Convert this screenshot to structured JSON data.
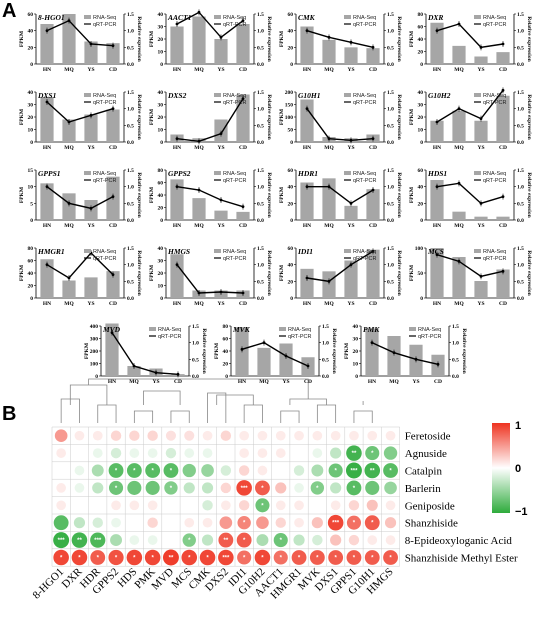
{
  "panel_labels": [
    "A",
    "B"
  ],
  "chart_data": [
    {
      "type": "bar+line",
      "panel": "A",
      "categories": [
        "HN",
        "MQ",
        "YS",
        "CD"
      ],
      "ylabel_left": "FPKM",
      "ylabel_right": "Relative expression",
      "legend": {
        "bar": "RNA-Seq",
        "line": "qRT-PCR"
      },
      "genes": [
        {
          "name": "8-HGO1",
          "fpkm": [
            48,
            60,
            27,
            25
          ],
          "yticks": [
            0,
            20,
            40,
            60
          ],
          "rel": [
            1.0,
            1.3,
            0.6,
            0.55
          ],
          "rticks": [
            0.0,
            0.5,
            1.0,
            1.5
          ]
        },
        {
          "name": "AACT1",
          "fpkm": [
            30,
            38,
            20,
            32
          ],
          "yticks": [
            0,
            10,
            20,
            30,
            40
          ],
          "rel": [
            1.2,
            1.55,
            0.8,
            1.3
          ],
          "rticks": [
            0.0,
            0.5,
            1.0,
            1.5
          ]
        },
        {
          "name": "CMK",
          "fpkm": [
            45,
            29,
            20,
            19
          ],
          "yticks": [
            0,
            20,
            40,
            60
          ],
          "rel": [
            1.0,
            0.8,
            0.65,
            0.5
          ],
          "rticks": [
            0.0,
            0.5,
            1.0,
            1.5
          ]
        },
        {
          "name": "DXR",
          "fpkm": [
            66,
            29,
            12,
            19
          ],
          "yticks": [
            0,
            20,
            40,
            60,
            80
          ],
          "rel": [
            1.0,
            1.2,
            0.5,
            0.6
          ],
          "rticks": [
            0.0,
            0.5,
            1.0,
            1.5
          ]
        },
        {
          "name": "DXS1",
          "fpkm": [
            36,
            18,
            22,
            26
          ],
          "yticks": [
            0,
            10,
            20,
            30,
            40
          ],
          "rel": [
            1.2,
            0.6,
            0.8,
            1.0
          ],
          "rticks": [
            0.0,
            0.5,
            1.0,
            1.5
          ]
        },
        {
          "name": "DXS2",
          "fpkm": [
            6,
            3,
            18,
            38
          ],
          "yticks": [
            0,
            10,
            20,
            30,
            40
          ],
          "rel": [
            0.1,
            0.02,
            0.25,
            1.3
          ],
          "rticks": [
            0.0,
            0.5,
            1.0,
            1.5
          ]
        },
        {
          "name": "G10H1",
          "fpkm": [
            170,
            20,
            15,
            30
          ],
          "yticks": [
            0,
            50,
            100,
            150,
            200
          ],
          "rel": [
            1.0,
            0.1,
            0.05,
            0.1
          ],
          "rticks": [
            0.0,
            0.5,
            1.0,
            1.5
          ]
        },
        {
          "name": "G10H2",
          "fpkm": [
            17,
            25,
            17,
            37
          ],
          "yticks": [
            0,
            10,
            20,
            30,
            40
          ],
          "rel": [
            0.6,
            1.0,
            0.7,
            1.55
          ],
          "rticks": [
            0.0,
            0.5,
            1.0,
            1.5
          ]
        },
        {
          "name": "GPPS1",
          "fpkm": [
            11,
            8,
            6,
            13
          ],
          "yticks": [
            0,
            5,
            10,
            15
          ],
          "rel": [
            1.0,
            0.5,
            0.35,
            0.7
          ],
          "rticks": [
            0.0,
            0.5,
            1.0,
            1.5
          ]
        },
        {
          "name": "GPPS2",
          "fpkm": [
            65,
            35,
            15,
            13
          ],
          "yticks": [
            0,
            20,
            40,
            60,
            80
          ],
          "rel": [
            1.0,
            0.9,
            0.6,
            0.4
          ],
          "rticks": [
            0.0,
            0.5,
            1.0,
            1.5
          ]
        },
        {
          "name": "HDR1",
          "fpkm": [
            45,
            50,
            17,
            37
          ],
          "yticks": [
            0,
            20,
            40,
            60
          ],
          "rel": [
            1.0,
            1.0,
            0.5,
            0.9
          ],
          "rticks": [
            0.0,
            0.5,
            1.0,
            1.5
          ]
        },
        {
          "name": "HDS1",
          "fpkm": [
            48,
            10,
            4,
            4
          ],
          "yticks": [
            0,
            20,
            40,
            60
          ],
          "rel": [
            1.0,
            1.1,
            0.5,
            0.7
          ],
          "rticks": [
            0.0,
            0.5,
            1.0,
            1.5
          ]
        },
        {
          "name": "HMGR1",
          "fpkm": [
            62,
            28,
            33,
            43
          ],
          "yticks": [
            0,
            20,
            40,
            60,
            80
          ],
          "rel": [
            1.0,
            0.6,
            1.35,
            0.7
          ],
          "rticks": [
            0.0,
            0.5,
            1.0,
            1.5
          ]
        },
        {
          "name": "HMGS",
          "fpkm": [
            35,
            6,
            6,
            6
          ],
          "yticks": [
            0,
            10,
            20,
            30,
            40
          ],
          "rel": [
            1.0,
            0.15,
            0.18,
            0.15
          ],
          "rticks": [
            0.0,
            0.5,
            1.0,
            1.5
          ]
        },
        {
          "name": "IDI1",
          "fpkm": [
            35,
            32,
            45,
            58
          ],
          "yticks": [
            0,
            20,
            40,
            60
          ],
          "rel": [
            0.6,
            0.5,
            1.0,
            1.4
          ],
          "rticks": [
            0.0,
            0.5,
            1.0,
            1.5
          ]
        },
        {
          "name": "MCS",
          "fpkm": [
            100,
            82,
            34,
            57
          ],
          "yticks": [
            0,
            50,
            100
          ],
          "rel": [
            1.3,
            1.1,
            0.65,
            0.8
          ],
          "rticks": [
            0.0,
            0.5,
            1.0,
            1.5
          ]
        },
        {
          "name": "MVD",
          "fpkm": [
            420,
            80,
            60,
            15
          ],
          "yticks": [
            0,
            100,
            200,
            300,
            400
          ],
          "rel": [
            1.3,
            0.3,
            0.1,
            0.05
          ],
          "rticks": [
            0.0,
            0.5,
            1.0,
            1.5
          ]
        },
        {
          "name": "MVK",
          "fpkm": [
            78,
            45,
            52,
            30
          ],
          "yticks": [
            0,
            20,
            40,
            60,
            80
          ],
          "rel": [
            0.8,
            1.0,
            0.6,
            0.3
          ],
          "rticks": [
            0.0,
            0.5,
            1.0,
            1.5
          ]
        },
        {
          "name": "PMK",
          "fpkm": [
            38,
            32,
            25,
            17
          ],
          "yticks": [
            0,
            10,
            20,
            30,
            40
          ],
          "rel": [
            1.0,
            0.7,
            0.5,
            0.35
          ],
          "rticks": [
            0.0,
            0.5,
            1.0,
            1.5
          ]
        }
      ]
    },
    {
      "type": "heatmap",
      "panel": "B",
      "columns": [
        "8-HGO1",
        "DXR",
        "HDR",
        "GPPS2",
        "HDS",
        "PMK",
        "MVD",
        "MCS",
        "CMK",
        "DXS2",
        "IDI1",
        "G10H2",
        "AACT1",
        "HMGR1",
        "MVK",
        "DXS1",
        "GPPS1",
        "G10H1",
        "HMGS"
      ],
      "rows": [
        "Feretoside",
        "Agnuside",
        "Catalpin",
        "Barlerin",
        "Geniposide",
        "Shanzhiside",
        "8-Epideoxyloganic Acid",
        "Shanzhiside Methyl Ester"
      ],
      "colorbar": {
        "max": "1",
        "mid": "0",
        "min": "−1",
        "colors": [
          "#2eab3c",
          "#ffffff",
          "#ee3320"
        ]
      },
      "values": [
        [
          0.5,
          0.1,
          0.1,
          0.2,
          0.2,
          0.2,
          0.15,
          0.15,
          0.1,
          0.2,
          0.1,
          0.1,
          0.1,
          0.1,
          0.1,
          0.1,
          0.1,
          0.1,
          0.1
        ],
        [
          0.1,
          0.0,
          -0.1,
          -0.2,
          -0.1,
          -0.1,
          -0.2,
          -0.1,
          -0.1,
          0.0,
          0.1,
          0.1,
          0.1,
          0.0,
          -0.1,
          -0.3,
          -0.9,
          -0.7,
          -0.6
        ],
        [
          0.0,
          -0.1,
          -0.4,
          -0.8,
          -0.8,
          -0.8,
          -0.8,
          -0.6,
          -0.5,
          -0.2,
          0.2,
          0.1,
          0.0,
          -0.2,
          -0.4,
          -0.7,
          -0.95,
          -0.9,
          -0.8
        ],
        [
          0.1,
          -0.1,
          -0.3,
          -0.7,
          -0.7,
          -0.7,
          -0.6,
          -0.3,
          -0.3,
          0.2,
          0.9,
          0.8,
          0.3,
          -0.1,
          -0.6,
          -0.3,
          -0.8,
          -0.7,
          -0.5
        ],
        [
          0.1,
          0.0,
          0.0,
          0.1,
          0.1,
          0.1,
          0.0,
          0.0,
          -0.2,
          0.1,
          0.2,
          -0.7,
          0.1,
          0.1,
          0.0,
          0.1,
          0.2,
          0.3,
          0.1
        ],
        [
          -0.8,
          -0.3,
          -0.2,
          -0.1,
          0.0,
          0.2,
          0.0,
          0.1,
          0.1,
          0.5,
          0.6,
          0.5,
          0.2,
          0.1,
          0.3,
          0.9,
          0.7,
          0.8,
          0.3
        ],
        [
          -0.95,
          -0.9,
          -0.85,
          -0.4,
          -0.1,
          -0.1,
          0.0,
          -0.6,
          -0.3,
          0.8,
          0.8,
          -0.4,
          -0.7,
          -0.3,
          -0.2,
          0.3,
          0.2,
          0.1,
          0.1
        ],
        [
          0.9,
          0.9,
          0.8,
          0.85,
          0.9,
          0.9,
          0.95,
          0.9,
          0.9,
          0.9,
          0.7,
          0.9,
          0.7,
          0.8,
          0.8,
          0.8,
          0.8,
          0.8,
          0.8
        ]
      ],
      "stars": [
        [
          "",
          "",
          "",
          "",
          "",
          "",
          "",
          "",
          "",
          "",
          "",
          "",
          "",
          "",
          "",
          "",
          "",
          "",
          ""
        ],
        [
          "",
          "",
          "",
          "",
          "",
          "",
          "",
          "",
          "",
          "",
          "",
          "",
          "",
          "",
          "",
          "",
          "**",
          "*",
          ""
        ],
        [
          "",
          "",
          "",
          "*",
          "*",
          "*",
          "*",
          "",
          "",
          "",
          "",
          "",
          "",
          "",
          "",
          "*",
          "***",
          "**",
          "*"
        ],
        [
          "",
          "",
          "",
          "*",
          "",
          "",
          "*",
          "",
          "",
          "",
          "***",
          "*",
          "",
          "",
          "*",
          "",
          "*",
          "",
          ""
        ],
        [
          "",
          "",
          "",
          "",
          "",
          "",
          "",
          "",
          "",
          "",
          "",
          "*",
          "",
          "",
          "",
          "",
          "",
          "",
          ""
        ],
        [
          "",
          "",
          "",
          "",
          "",
          "",
          "",
          "",
          "",
          "",
          "*",
          "",
          "",
          "",
          "",
          "***",
          "*",
          "*",
          ""
        ],
        [
          "***",
          "**",
          "***",
          "",
          "",
          "",
          "",
          "*",
          "",
          "**",
          "*",
          "",
          "*",
          "",
          "",
          "",
          "",
          "",
          ""
        ],
        [
          "*",
          "*",
          "*",
          "*",
          "*",
          "*",
          "**",
          "*",
          "*",
          "***",
          "*",
          "*",
          "*",
          "*",
          "*",
          "*",
          "*",
          "*",
          "*"
        ]
      ]
    }
  ]
}
